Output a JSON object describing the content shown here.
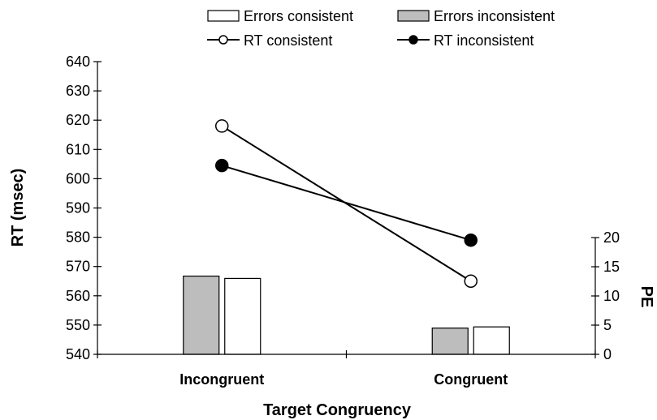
{
  "chart_data": {
    "type": "bar",
    "categories": [
      "Incongruent",
      "Congruent"
    ],
    "xlabel": "Target Congruency",
    "ylabel_left": "RT (msec)",
    "ylabel_right": "PE",
    "ylim_left": [
      540,
      640
    ],
    "ylim_right": [
      0,
      20
    ],
    "yticks_left": [
      540,
      550,
      560,
      570,
      580,
      590,
      600,
      610,
      620,
      630,
      640
    ],
    "yticks_right": [
      0,
      5,
      10,
      15,
      20
    ],
    "grid": false,
    "legend_position": "top",
    "series": [
      {
        "name": "Errors consistent",
        "kind": "bar",
        "axis": "right",
        "values": [
          13.0,
          4.7
        ],
        "color": "#ffffff"
      },
      {
        "name": "Errors inconsistent",
        "kind": "bar",
        "axis": "right",
        "values": [
          13.4,
          4.5
        ],
        "color": "#bdbdbd"
      },
      {
        "name": "RT consistent",
        "kind": "line",
        "axis": "left",
        "values": [
          618,
          565
        ],
        "marker": "open-circle"
      },
      {
        "name": "RT inconsistent",
        "kind": "line",
        "axis": "left",
        "values": [
          604.5,
          579
        ],
        "marker": "filled-circle"
      }
    ]
  }
}
